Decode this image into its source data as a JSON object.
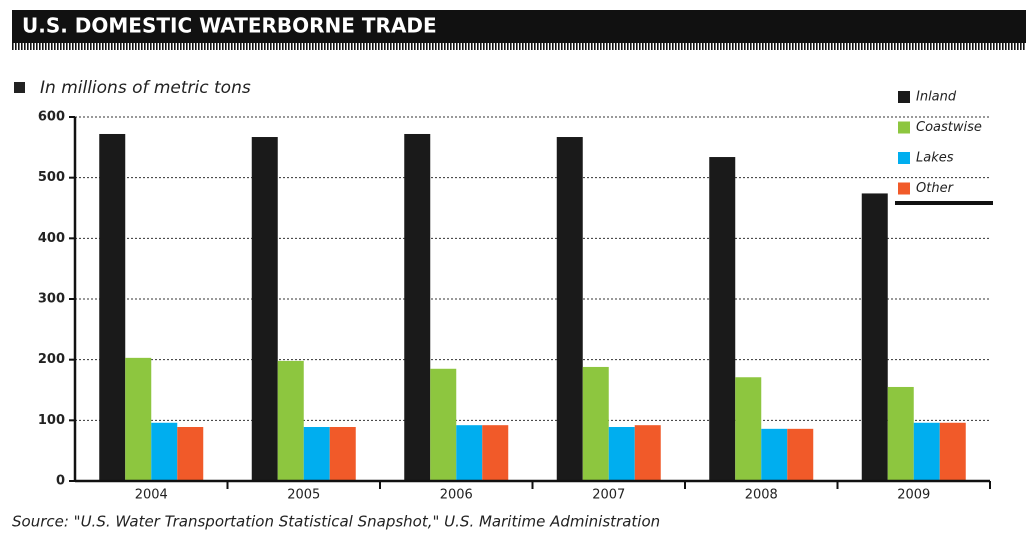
{
  "chart_data": {
    "type": "bar",
    "title": "U.S. DOMESTIC WATERBORNE TRADE",
    "subtitle": "In millions of metric tons",
    "source": "Source: \"U.S. Water Transportation Statistical Snapshot,\" U.S. Maritime Administration",
    "categories": [
      "2004",
      "2005",
      "2006",
      "2007",
      "2008",
      "2009"
    ],
    "series": [
      {
        "name": "Inland",
        "color": "#1a1a1a",
        "values": [
          572,
          567,
          572,
          567,
          534,
          474
        ]
      },
      {
        "name": "Coastwise",
        "color": "#8dc63f",
        "values": [
          203,
          198,
          185,
          188,
          171,
          155
        ]
      },
      {
        "name": "Lakes",
        "color": "#00aeef",
        "values": [
          96,
          89,
          92,
          89,
          86,
          96
        ]
      },
      {
        "name": "Other",
        "color": "#f15a29",
        "values": [
          89,
          89,
          92,
          92,
          86,
          96
        ]
      }
    ],
    "ylim": [
      0,
      600
    ],
    "yticks": [
      0,
      100,
      200,
      300,
      400,
      500,
      600
    ],
    "grid": true,
    "legend": "upper right"
  }
}
